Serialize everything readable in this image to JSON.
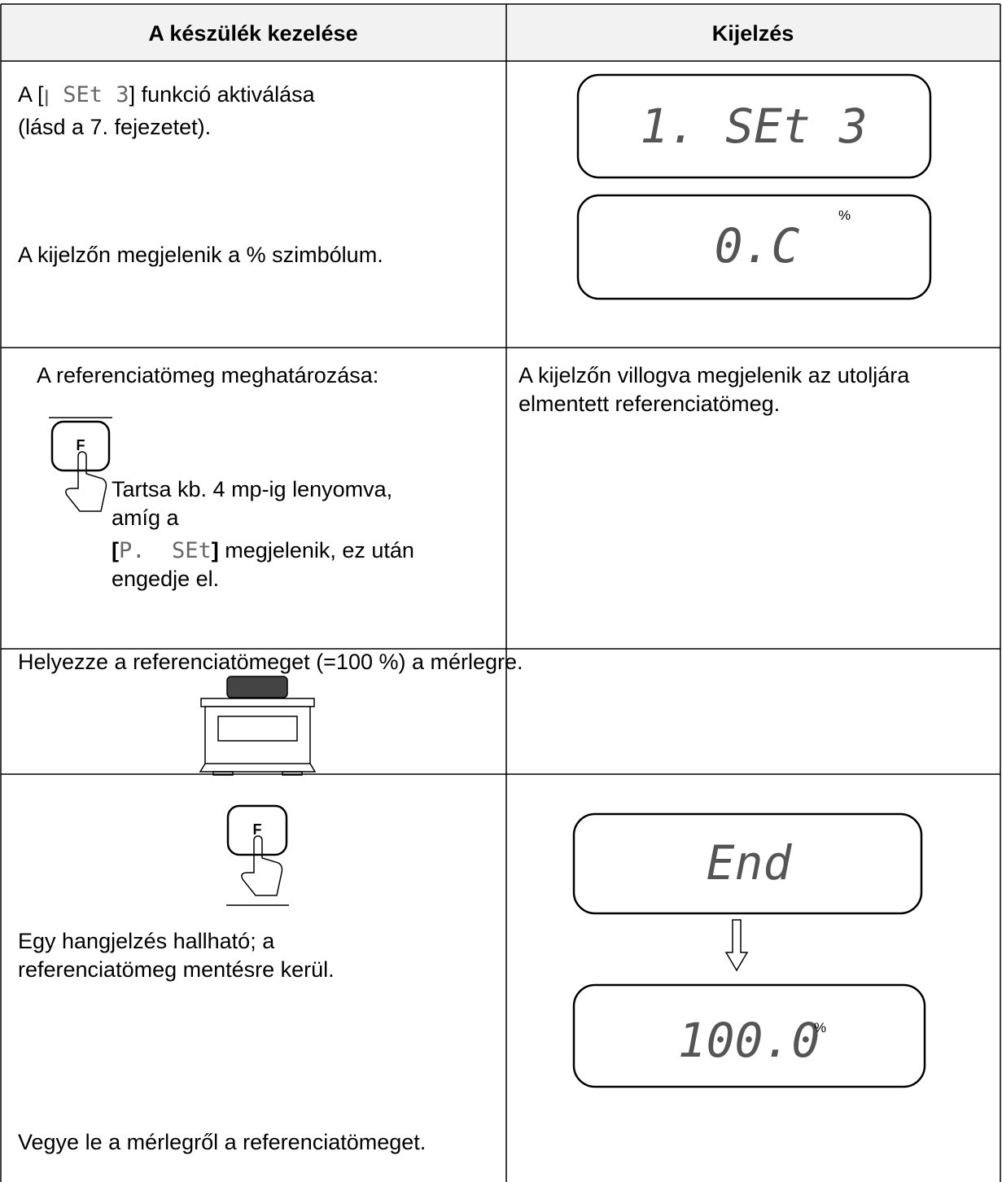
{
  "header": {
    "col1": "A készülék kezelése",
    "col2": "Kijelzés"
  },
  "row1": {
    "left": {
      "prefix": "A [",
      "code": "ꞁ SEt 3",
      "suffix": "] funkció aktiválása",
      "line2": "(lásd a 7. fejezetet).",
      "line3": "A kijelzőn megjelenik a % szimbólum."
    },
    "right": {
      "display1": "1. SEt 3",
      "display2": "0.C",
      "display2_unit": "%"
    }
  },
  "row2": {
    "left": {
      "title": "A referenciatömeg meghatározása:",
      "key": "F",
      "lines": [
        "Tartsa kb. 4 mp-ig lenyomva,",
        "amíg a"
      ],
      "open": "[",
      "code": "P.  SEt",
      "close": "]",
      "rest": " megjelenik, ez után",
      "last": "engedje el."
    },
    "right": {
      "lines": [
        "A kijelzőn villogva megjelenik az utoljára",
        "elmentett referenciatömeg."
      ]
    }
  },
  "row3": {
    "text": "Helyezze a referenciatömeget (=100 %) a mérlegre."
  },
  "row4": {
    "left": {
      "key": "F",
      "lines": [
        "Egy hangjelzés hallható; a",
        "referenciatömeg mentésre kerül."
      ],
      "last": "Vegye le a mérlegről a referenciatömeget."
    },
    "right": {
      "display1": "End",
      "display2": "100.0",
      "display2_unit": "%"
    }
  }
}
